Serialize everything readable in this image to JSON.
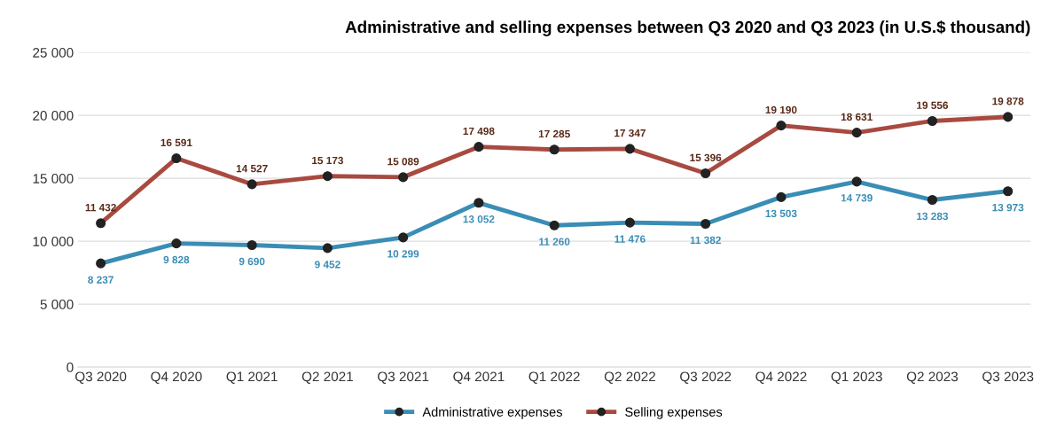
{
  "chart_data": {
    "type": "line",
    "title": "Administrative and selling expenses between Q3 2020 and Q3 2023 (in U.S.$ thousand)",
    "categories": [
      "Q3 2020",
      "Q4 2020",
      "Q1 2021",
      "Q2 2021",
      "Q3 2021",
      "Q4 2021",
      "Q1 2022",
      "Q2 2022",
      "Q3 2022",
      "Q4 2022",
      "Q1 2023",
      "Q2 2023",
      "Q3 2023"
    ],
    "series": [
      {
        "name": "Administrative expenses",
        "color": "#3a8db5",
        "values": [
          8237,
          9828,
          9690,
          9452,
          10299,
          13052,
          11260,
          11476,
          11382,
          13503,
          14739,
          13283,
          13973
        ]
      },
      {
        "name": "Selling expenses",
        "color": "#a84a40",
        "values": [
          11432,
          16591,
          14527,
          15173,
          15089,
          17498,
          17285,
          17347,
          15396,
          19190,
          18631,
          19556,
          19878
        ]
      }
    ],
    "ylim": [
      0,
      25000
    ],
    "yticks": [
      0,
      {
        "value": 5000,
        "label": "5 000"
      },
      {
        "value": 10000,
        "label": "10 000"
      },
      {
        "value": 15000,
        "label": "15 000"
      },
      {
        "value": 20000,
        "label": "20 000"
      },
      {
        "value": 25000,
        "label": "25 000"
      }
    ],
    "grid": "y",
    "legend": "bottom",
    "marker": "circle",
    "line_style": "solid",
    "data_labels": true
  }
}
